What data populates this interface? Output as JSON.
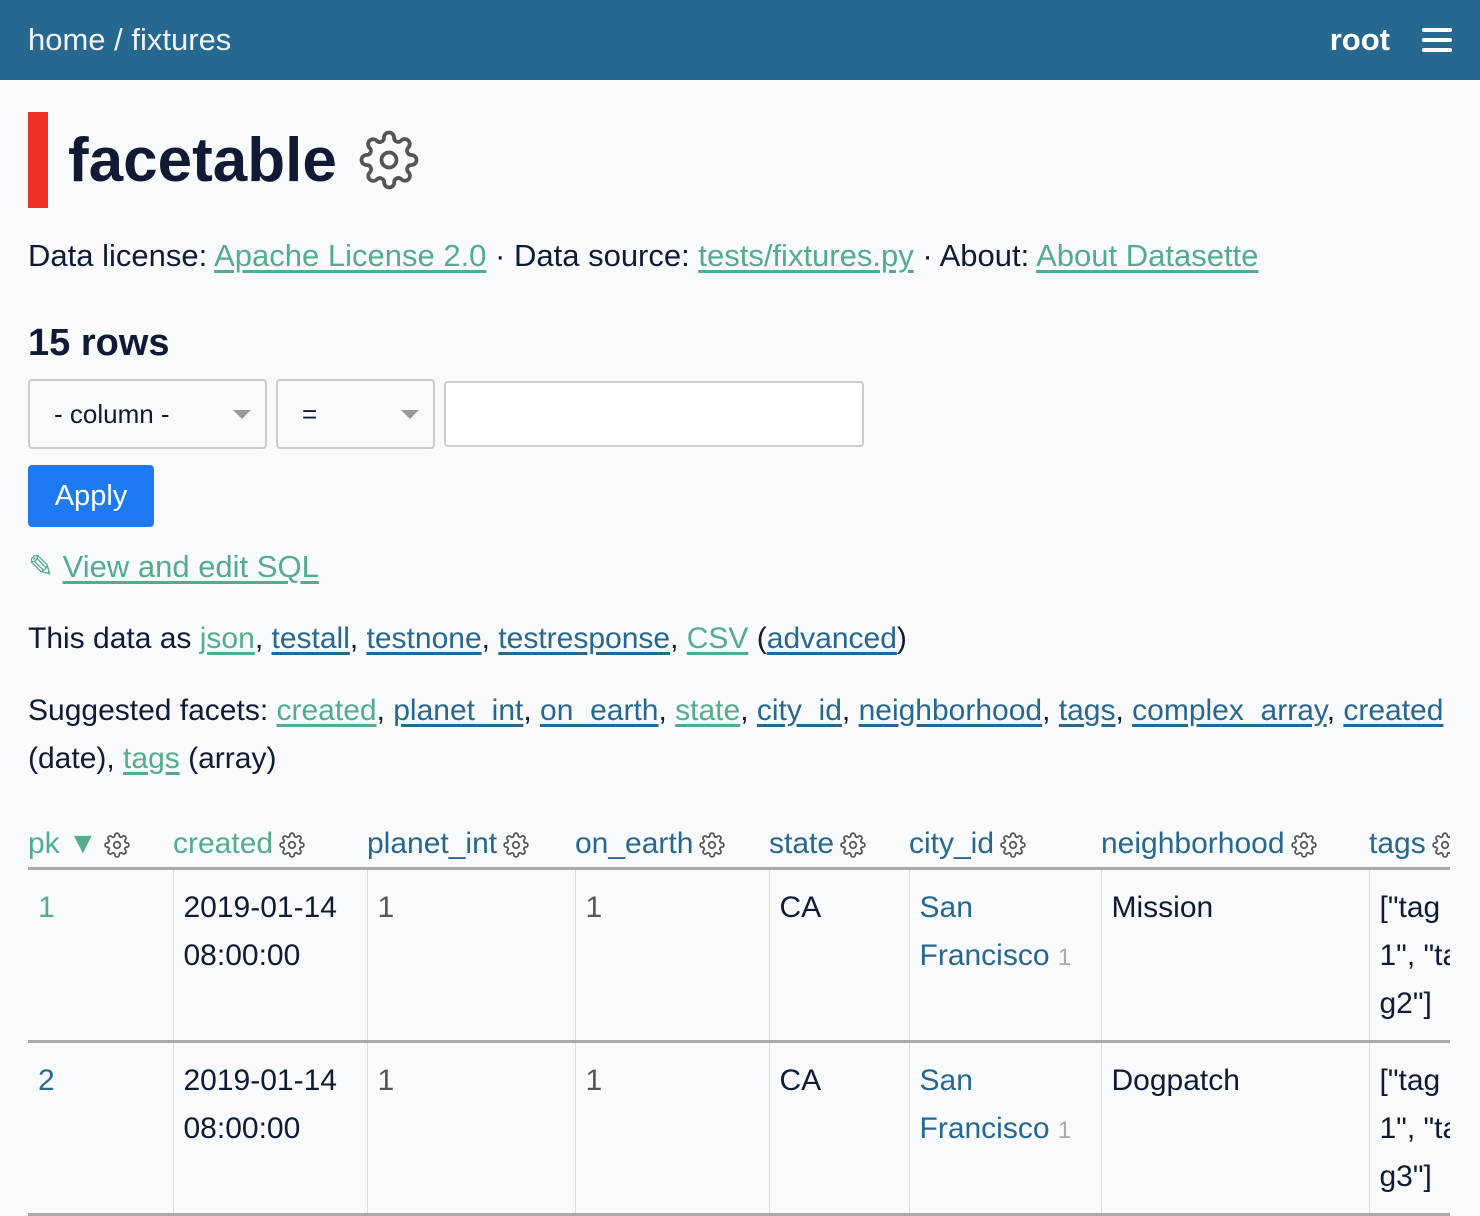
{
  "header": {
    "home": "home",
    "sep": " / ",
    "db": "fixtures",
    "user": "root",
    "menu_icon": "hamburger-icon"
  },
  "colors": {
    "header_bg": "#276890",
    "link": "#276890",
    "visited_link": "#54ac8e",
    "title_bar": "#ee3124",
    "apply_button": "#1d7af3"
  },
  "title": "facetable",
  "meta": {
    "license_label": "Data license: ",
    "license": "Apache License 2.0",
    "source_label": "Data source: ",
    "source": "tests/fixtures.py",
    "about_label": "About: ",
    "about": "About Datasette",
    "sep": " · "
  },
  "count": "15 rows",
  "filters": {
    "column": "- column -",
    "op": "=",
    "value": "",
    "apply": "Apply"
  },
  "sql_link": "View and edit SQL",
  "export": {
    "prefix": "This data as ",
    "formats": [
      "json",
      "testall",
      "testnone",
      "testresponse",
      "CSV"
    ],
    "advanced": "advanced"
  },
  "facets": {
    "prefix": "Suggested facets: ",
    "items": [
      "created",
      "planet_int",
      "on_earth",
      "state",
      "city_id",
      "neighborhood",
      "tags",
      "complex_array"
    ],
    "date": "created",
    "date_suffix": " (date)",
    "array": "tags",
    "array_suffix": " (array)"
  },
  "table": {
    "columns": [
      "pk",
      "created",
      "planet_int",
      "on_earth",
      "state",
      "city_id",
      "neighborhood",
      "tags"
    ],
    "sort_indicator": "▼",
    "rows": [
      {
        "pk": "1",
        "created": "2019-01-14 08:00:00",
        "planet_int": "1",
        "on_earth": "1",
        "state": "CA",
        "city": "San Francisco",
        "city_id": "1",
        "neighborhood": "Mission",
        "tags": "[\"tag1\", \"tag2\"]"
      },
      {
        "pk": "2",
        "created": "2019-01-14 08:00:00",
        "planet_int": "1",
        "on_earth": "1",
        "state": "CA",
        "city": "San Francisco",
        "city_id": "1",
        "neighborhood": "Dogpatch",
        "tags": "[\"tag1\", \"tag3\"]"
      }
    ]
  }
}
